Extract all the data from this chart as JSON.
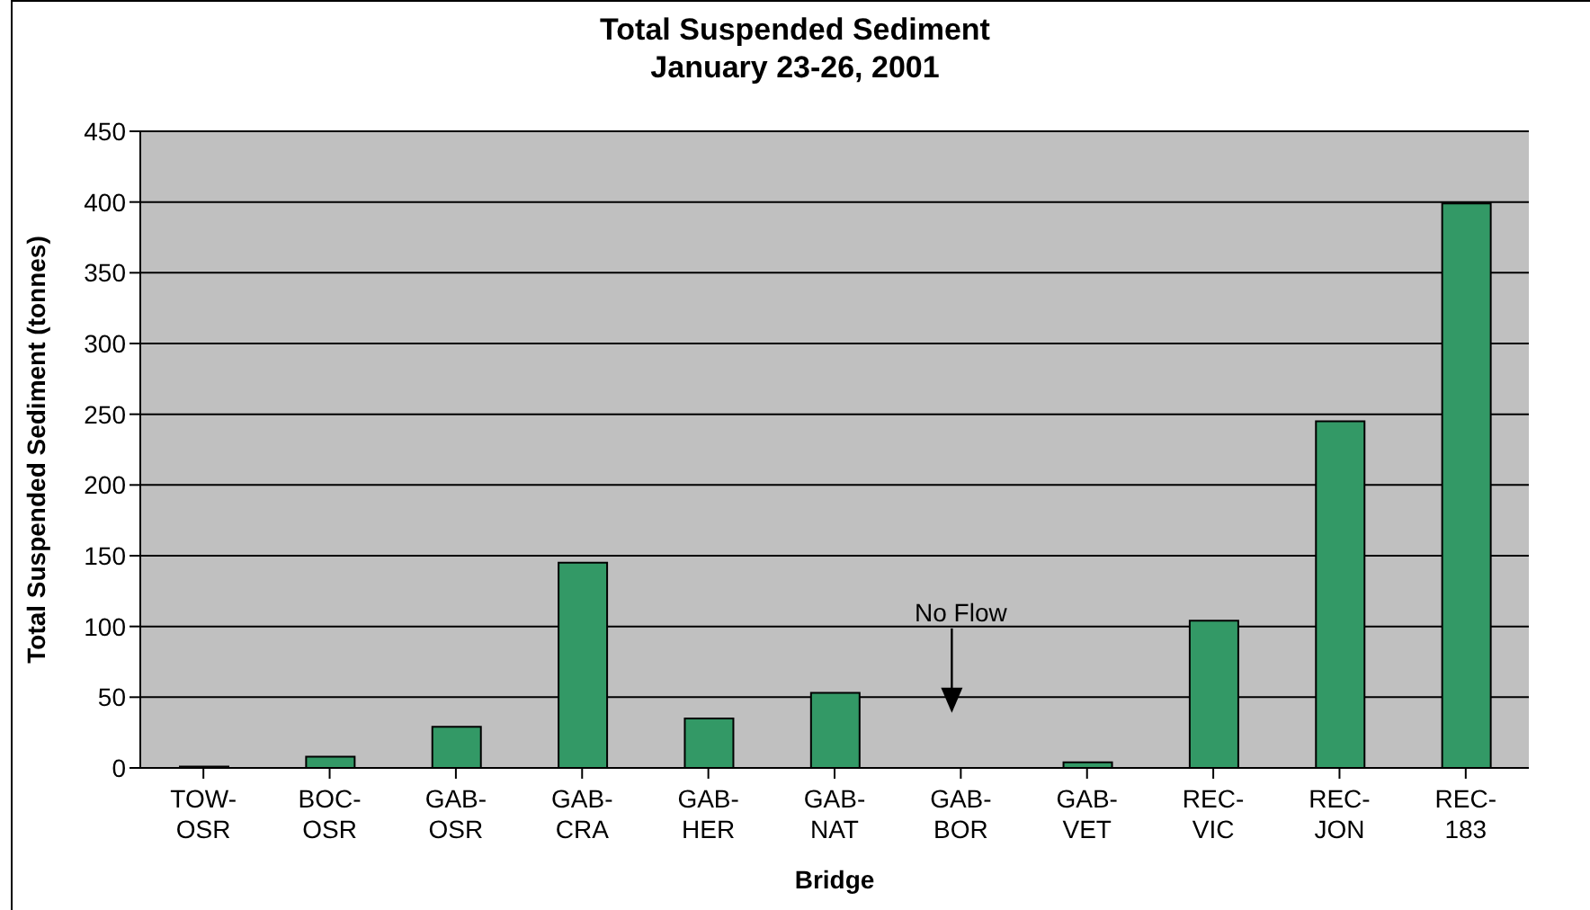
{
  "chart_data": {
    "type": "bar",
    "title": "Total Suspended Sediment",
    "subtitle": "January 23-26, 2001",
    "xlabel": "Bridge",
    "ylabel": "Total Suspended Sediment (tonnes)",
    "categories": [
      "TOW-OSR",
      "BOC-OSR",
      "GAB-OSR",
      "GAB-CRA",
      "GAB-HER",
      "GAB-NAT",
      "GAB-BOR",
      "GAB-VET",
      "REC-VIC",
      "REC-JON",
      "REC-183"
    ],
    "values": [
      1,
      8,
      29,
      145,
      35,
      53,
      null,
      4,
      104,
      245,
      399
    ],
    "color": "#339966",
    "ylim": [
      0,
      450
    ],
    "yticks": [
      0,
      50,
      100,
      150,
      200,
      250,
      300,
      350,
      400,
      450
    ],
    "grid": "y",
    "annotations": [
      "No Flow"
    ]
  }
}
